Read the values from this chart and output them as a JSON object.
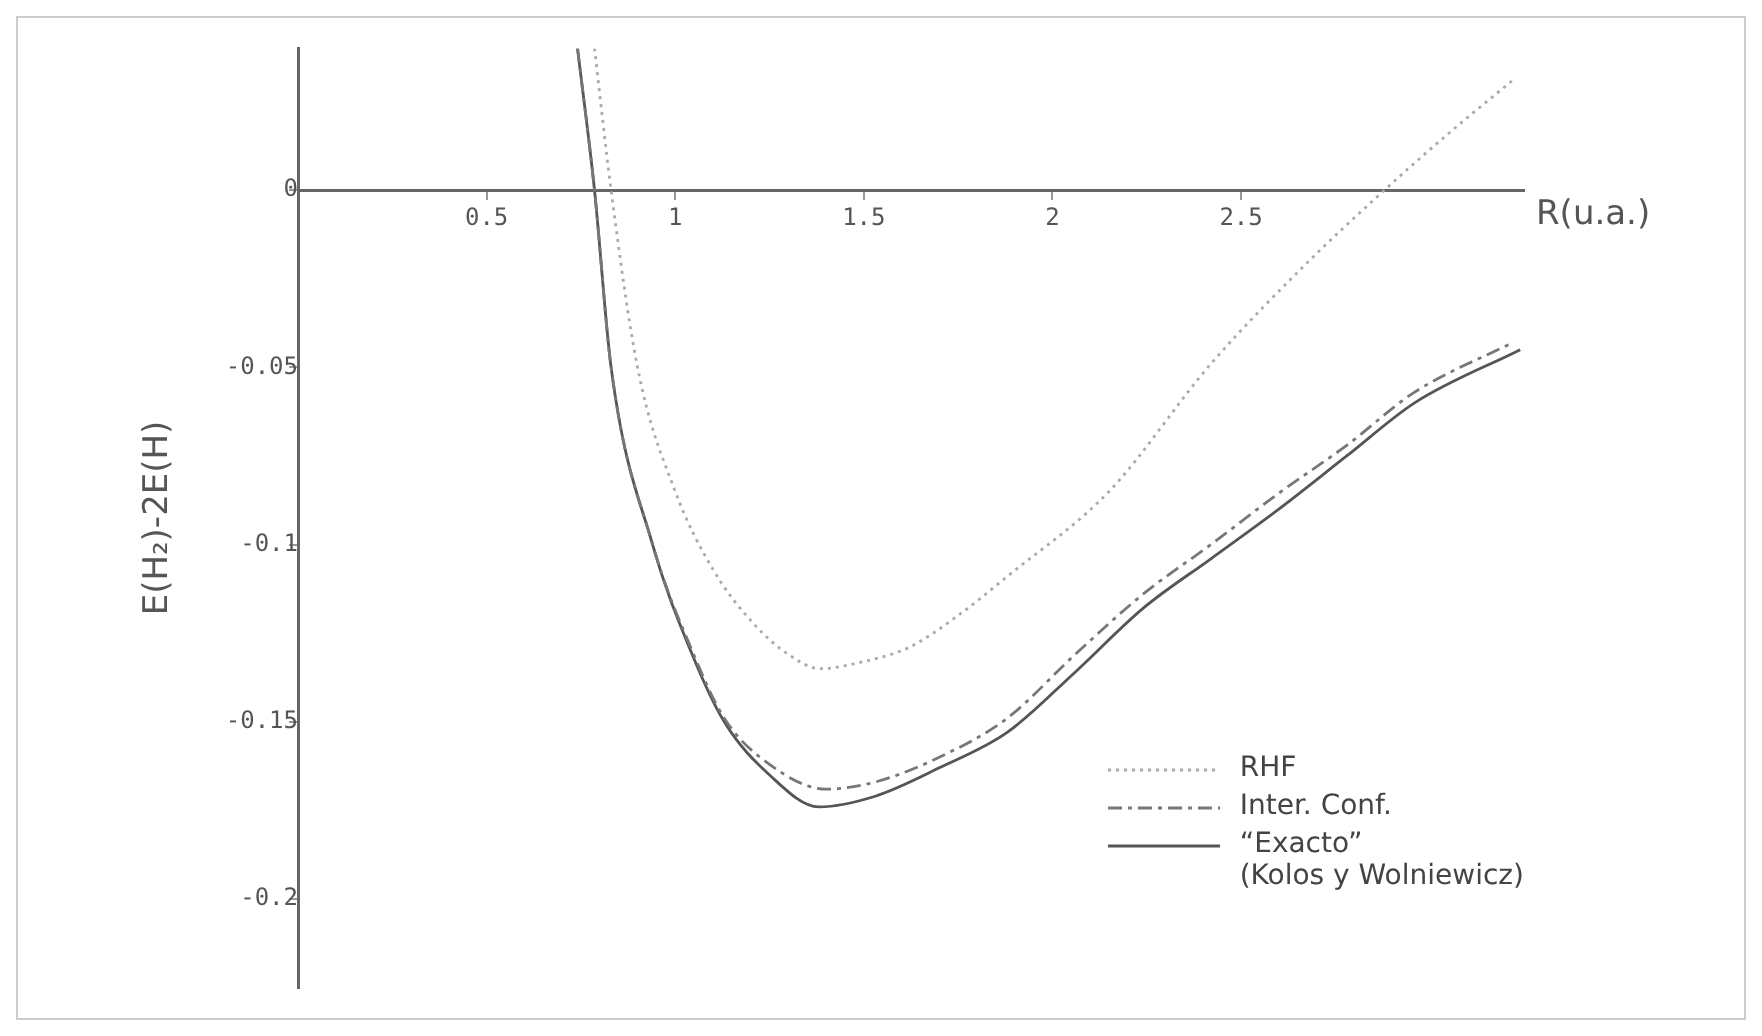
{
  "chart_data": {
    "type": "line",
    "xlabel": "R(u.a.)",
    "ylabel": "E(H₂)-2E(H)",
    "xlim": [
      0,
      3.25
    ],
    "ylim": [
      -0.225,
      0.04
    ],
    "xticks": [
      0.5,
      1,
      1.5,
      2,
      2.5
    ],
    "yticks": [
      0,
      -0.05,
      -0.1,
      -0.15,
      -0.2
    ],
    "grid": false,
    "legend": "bottom right",
    "marker": "none",
    "series": [
      {
        "name": "RHF",
        "color": "#aaaaaa",
        "line_style": "dotted",
        "x": [
          0.786,
          0.83,
          0.9,
          1.0,
          1.1,
          1.205,
          1.3,
          1.384,
          1.5,
          1.62,
          1.75,
          1.88,
          2.15,
          2.42,
          2.68,
          2.88,
          3.05,
          3.22
        ],
        "values": [
          0.04,
          0.0,
          -0.05,
          -0.085,
          -0.107,
          -0.122,
          -0.131,
          -0.135,
          -0.133,
          -0.129,
          -0.12,
          -0.109,
          -0.085,
          -0.049,
          -0.02,
          0.0,
          0.016,
          0.031
        ]
      },
      {
        "name": "Inter. Conf.",
        "color": "#777777",
        "line_style": "dashed",
        "x": [
          0.741,
          0.786,
          0.83,
          0.94,
          1.045,
          1.13,
          1.25,
          1.4,
          1.53,
          1.7,
          1.88,
          2.06,
          2.24,
          2.42,
          2.6,
          2.78,
          2.96,
          3.22
        ],
        "values": [
          0.04,
          0.0,
          -0.05,
          -0.1,
          -0.13,
          -0.149,
          -0.162,
          -0.169,
          -0.167,
          -0.16,
          -0.149,
          -0.131,
          -0.114,
          -0.1,
          -0.0855,
          -0.072,
          -0.057,
          -0.043
        ]
      },
      {
        "name": "“Exacto”\n(Kolos y Wolniewicz)",
        "color": "#555555",
        "line_style": "solid",
        "x": [
          0.741,
          0.786,
          0.83,
          0.94,
          1.045,
          1.13,
          1.25,
          1.38,
          1.53,
          1.7,
          1.88,
          2.06,
          2.24,
          2.42,
          2.6,
          2.78,
          2.96,
          3.24
        ],
        "values": [
          0.04,
          0.0,
          -0.05,
          -0.1,
          -0.131,
          -0.15,
          -0.165,
          -0.174,
          -0.171,
          -0.163,
          -0.153,
          -0.136,
          -0.118,
          -0.104,
          -0.09,
          -0.075,
          -0.06,
          -0.045
        ]
      }
    ]
  }
}
